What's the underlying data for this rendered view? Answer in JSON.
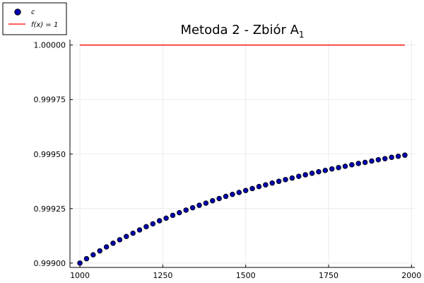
{
  "chart_data": {
    "type": "scatter",
    "title": "Metoda 2 - Zbiór A",
    "title_subscript": "1",
    "xlabel": "",
    "ylabel": "",
    "xlim": [
      970,
      2010
    ],
    "ylim": [
      0.99898,
      1.000025
    ],
    "grid": true,
    "legend_position": "top-left",
    "x_ticks": [
      {
        "value": 1000,
        "label": "1000"
      },
      {
        "value": 1250,
        "label": "1250"
      },
      {
        "value": 1500,
        "label": "1500"
      },
      {
        "value": 1750,
        "label": "1750"
      },
      {
        "value": 2000,
        "label": "2000"
      }
    ],
    "y_ticks": [
      {
        "value": 0.999,
        "label": "0.99900"
      },
      {
        "value": 0.99925,
        "label": "0.99925"
      },
      {
        "value": 0.9995,
        "label": "0.99950"
      },
      {
        "value": 0.99975,
        "label": "0.99975"
      },
      {
        "value": 1.0,
        "label": "1.00000"
      }
    ],
    "series": [
      {
        "name": "c",
        "kind": "scatter",
        "color": "#0000b3",
        "x": [
          1000,
          1020,
          1040,
          1060,
          1080,
          1100,
          1120,
          1140,
          1160,
          1180,
          1200,
          1220,
          1240,
          1260,
          1280,
          1300,
          1320,
          1340,
          1360,
          1380,
          1400,
          1420,
          1440,
          1460,
          1480,
          1500,
          1520,
          1540,
          1560,
          1580,
          1600,
          1620,
          1640,
          1660,
          1680,
          1700,
          1720,
          1740,
          1760,
          1780,
          1800,
          1820,
          1840,
          1860,
          1880,
          1900,
          1920,
          1940,
          1960,
          1980
        ],
        "y": [
          0.999,
          0.99902,
          0.999038,
          0.999056,
          0.999074,
          0.999091,
          0.999107,
          0.999122,
          0.999137,
          0.999152,
          0.999167,
          0.99918,
          0.999194,
          0.999206,
          0.999219,
          0.999231,
          0.999243,
          0.999254,
          0.999265,
          0.999275,
          0.999286,
          0.999296,
          0.999306,
          0.999315,
          0.999324,
          0.999333,
          0.999342,
          0.999351,
          0.999359,
          0.999367,
          0.999375,
          0.999383,
          0.99939,
          0.999398,
          0.999405,
          0.999412,
          0.999419,
          0.999425,
          0.999432,
          0.999438,
          0.999444,
          0.999451,
          0.999457,
          0.999462,
          0.999468,
          0.999474,
          0.999479,
          0.999485,
          0.99949,
          0.999495
        ]
      },
      {
        "name": "f(x) = 1",
        "kind": "line",
        "color": "#ff0000",
        "x": [
          1000,
          1980
        ],
        "y": [
          1.0,
          1.0
        ]
      }
    ]
  }
}
